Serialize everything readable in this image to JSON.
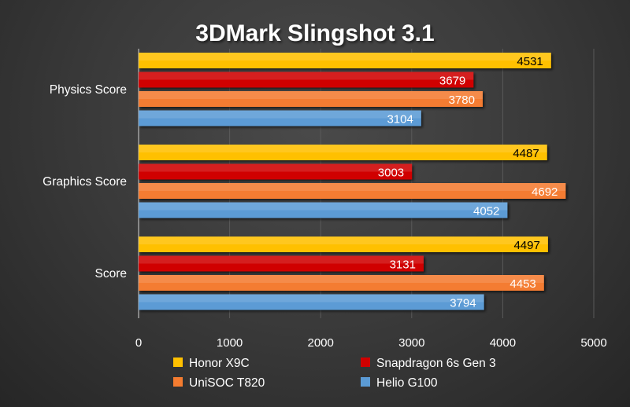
{
  "chart_data": {
    "type": "bar",
    "orientation": "horizontal",
    "title": "3DMark Slingshot 3.1",
    "categories": [
      "Physics Score",
      "Graphics Score",
      "Score"
    ],
    "series": [
      {
        "name": "Honor X9C",
        "color": "#ffc000",
        "label_color": "#000000",
        "values": [
          4531,
          4487,
          4497
        ]
      },
      {
        "name": "Snapdragon 6s Gen 3",
        "color": "#d00000",
        "label_color": "#ffffff",
        "values": [
          3679,
          3003,
          3131
        ]
      },
      {
        "name": "UniSOC T820",
        "color": "#f47c30",
        "label_color": "#ffffff",
        "values": [
          3780,
          4692,
          4453
        ]
      },
      {
        "name": "Helio G100",
        "color": "#5b9bd5",
        "label_color": "#ffffff",
        "values": [
          3104,
          4052,
          3794
        ]
      }
    ],
    "xlim": [
      0,
      5000
    ],
    "xticks": [
      "0",
      "1000",
      "2000",
      "3000",
      "4000",
      "5000"
    ],
    "grid": true,
    "legend_position": "bottom",
    "xlabel": "",
    "ylabel": ""
  }
}
